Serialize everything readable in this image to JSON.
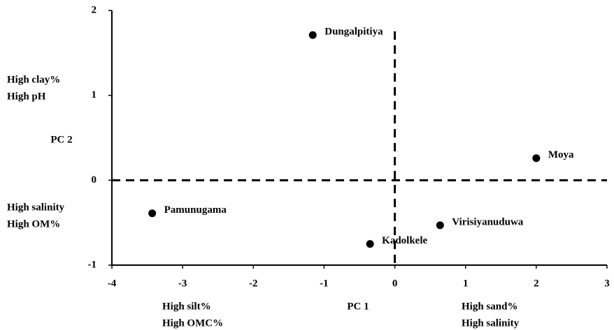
{
  "chart_data": {
    "type": "scatter",
    "x_label": "PC 1",
    "y_label": "PC 2",
    "xlim": [
      -4,
      3
    ],
    "xticks": [
      -4,
      -3,
      -2,
      -1,
      0,
      1,
      2,
      3
    ],
    "ylim": [
      -1,
      2
    ],
    "yticks": [
      -1,
      0,
      1,
      2
    ],
    "color": "#000000",
    "points": [
      {
        "label": "Dungalpitiya",
        "x": -1.16,
        "y": 1.71
      },
      {
        "label": "Moya",
        "x": 2.0,
        "y": 0.26
      },
      {
        "label": "Pamunugama",
        "x": -3.43,
        "y": -0.39
      },
      {
        "label": "Virisiyanuduwa",
        "x": 0.64,
        "y": -0.53
      },
      {
        "label": "Kadolkele",
        "x": -0.35,
        "y": -0.75
      }
    ],
    "annotations": [
      [
        "High clay%",
        "High pH"
      ],
      [
        "High salinity",
        "High OM%"
      ],
      [
        "High silt%",
        "High OMC%"
      ],
      [
        "High sand%",
        "High salinity"
      ]
    ]
  }
}
